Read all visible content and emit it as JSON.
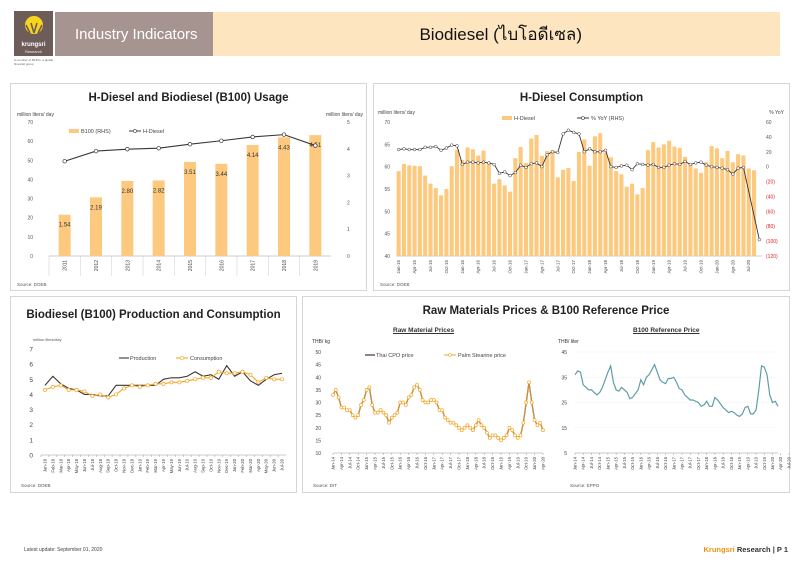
{
  "header": {
    "logo_text": "krungsri",
    "logo_sub": "Research",
    "member_text": "A member of MUFG, a global financial group",
    "section": "Industry Indicators",
    "title": "Biodiesel (ไบโอดีเซล)"
  },
  "colors": {
    "bar": "#fdc97e",
    "orange": "#f5a623",
    "dark": "#3d3535",
    "teal": "#5f9ea8",
    "red": "#e02020",
    "brand": "#f0930c"
  },
  "footer": {
    "updated": "Latest update: September 01, 2020",
    "brand": "Krungsri",
    "brand_rest": " Research | P 1"
  },
  "chart_data": [
    {
      "id": "usage",
      "type": "bar",
      "title": "H-Diesel and Biodiesel (B100) Usage",
      "ylabel_left": "million liters/ day",
      "ylabel_right": "million liters/ day",
      "categories": [
        "2011",
        "2012",
        "2013",
        "2014",
        "2015",
        "2016",
        "2017",
        "2018",
        "2019"
      ],
      "series": [
        {
          "name": "B100 (RHS)",
          "type": "bar",
          "axis": "right",
          "values": [
            1.54,
            2.19,
            2.8,
            2.82,
            3.51,
            3.44,
            4.14,
            4.43,
            4.51
          ],
          "labels": [
            "1.54",
            "2.19",
            "2.80",
            "2.82",
            "3.51",
            "3.44",
            "4.14",
            "4.43",
            "4.51"
          ]
        },
        {
          "name": "H-Diesel",
          "type": "line",
          "axis": "left",
          "values": [
            49.5,
            54.8,
            55.8,
            56.3,
            58.4,
            60.2,
            62.2,
            63.4,
            57.7
          ]
        }
      ],
      "ylim_left": [
        0,
        70
      ],
      "yticks_left": [
        "0",
        "10",
        "20",
        "30",
        "40",
        "50",
        "60",
        "70"
      ],
      "ylim_right": [
        0,
        5
      ],
      "yticks_right": [
        "0",
        "1",
        "2",
        "3",
        "4",
        "5"
      ],
      "legend": "top",
      "source": "Source: DOEB"
    },
    {
      "id": "consumption",
      "type": "bar",
      "title": "H-Diesel Consumption",
      "ylabel_left": "million liters/ day",
      "ylabel_right": "% YoY",
      "x_ticks": [
        "Jan-15",
        "Apr-15",
        "Jul-15",
        "Oct-15",
        "Jan-16",
        "Apr-16",
        "Jul-16",
        "Oct-16",
        "Jan-17",
        "Apr-17",
        "Jul-17",
        "Oct-17",
        "Jan-18",
        "Apr-18",
        "Jul-18",
        "Oct-18",
        "Jan-19",
        "Apr-19",
        "Jul-19",
        "Oct-19",
        "Jan-20",
        "Apr-20",
        "Jul-20"
      ],
      "series": [
        {
          "name": "H-Diesel",
          "type": "bar",
          "axis": "left",
          "values": [
            59.0,
            60.6,
            60.3,
            60.2,
            60.1,
            58.0,
            56.2,
            55.2,
            53.6,
            55.0,
            60.1,
            63.8,
            61.5,
            64.3,
            63.9,
            62.5,
            63.6,
            61.0,
            56.2,
            57.2,
            55.8,
            54.4,
            61.9,
            64.4,
            60.8,
            66.3,
            67.1,
            62.4,
            63.5,
            63.6,
            57.6,
            59.3,
            59.7,
            56.8,
            63.3,
            66.1,
            60.2,
            66.8,
            67.5,
            63.2,
            62.1,
            59.0,
            58.3,
            55.5,
            56.2,
            53.8,
            55.2,
            63.7,
            65.5,
            64.3,
            65.0,
            65.8,
            64.5,
            64.2,
            62.2,
            60.7,
            59.6,
            58.6,
            61.0,
            64.6,
            64.1,
            61.9,
            63.5,
            61.0,
            62.8,
            62.5,
            59.6,
            59.2,
            null
          ]
        },
        {
          "name": "% YoY (RHS)",
          "type": "line",
          "axis": "right",
          "values": [
            23,
            24,
            23,
            23,
            23,
            26,
            26,
            27,
            22,
            25,
            29,
            28,
            3,
            6,
            6,
            5,
            6,
            5,
            3,
            -9,
            -7,
            -12,
            -8,
            2,
            -1,
            4,
            5,
            0,
            16,
            20,
            19,
            44,
            49,
            46,
            44,
            20,
            24,
            20,
            20,
            22,
            0,
            -1,
            1,
            2,
            -4,
            4,
            3,
            2,
            3,
            -1,
            -1,
            2,
            4,
            3,
            7,
            3,
            5,
            6,
            2,
            0,
            -1,
            -2,
            -4,
            -10,
            -2,
            -1,
            -98
          ]
        }
      ],
      "ylim_left": [
        40,
        70
      ],
      "yticks_left": [
        "40",
        "45",
        "50",
        "55",
        "60",
        "65",
        "70"
      ],
      "ylim_right": [
        -120,
        60
      ],
      "yticks_right": [
        "(120)",
        "(100)",
        "(80)",
        "(60)",
        "(40)",
        "(20)",
        "0",
        "20",
        "40",
        "60"
      ],
      "legend": "top",
      "source": "Source: DOEB"
    },
    {
      "id": "prodcons",
      "type": "line",
      "title": "Biodiesel (B100) Production and Consumption",
      "ylabel": "million liters/day",
      "x": [
        "Jan-18",
        "Feb-18",
        "Mar-18",
        "Apr-18",
        "May-18",
        "Jun-18",
        "Jul-18",
        "Aug-18",
        "Sep-18",
        "Oct-18",
        "Nov-18",
        "Dec-18",
        "Jan-19",
        "Feb-19",
        "Mar-19",
        "Apr-19",
        "May-19",
        "Jun-19",
        "Jul-19",
        "Aug-19",
        "Sep-19",
        "Oct-19",
        "Nov-19",
        "Dec-19",
        "Jan-20",
        "Feb-20",
        "Mar-20",
        "Apr-20",
        "May-20",
        "Jun-20",
        "Jul-20"
      ],
      "series": [
        {
          "name": "Production",
          "values": [
            4.6,
            5.2,
            4.7,
            4.4,
            4.3,
            4.0,
            4.0,
            3.9,
            3.9,
            4.6,
            4.6,
            4.6,
            4.6,
            4.6,
            4.6,
            5.0,
            5.1,
            5.1,
            5.2,
            5.5,
            5.2,
            5.3,
            5.0,
            5.9,
            5.2,
            5.5,
            4.9,
            4.6,
            5.0,
            5.3,
            5.4
          ]
        },
        {
          "name": "Consumption",
          "values": [
            4.3,
            4.5,
            4.6,
            4.3,
            4.3,
            4.2,
            3.9,
            4.0,
            3.8,
            4.0,
            4.4,
            4.6,
            4.5,
            4.6,
            4.7,
            4.7,
            4.8,
            4.8,
            4.9,
            5.0,
            5.1,
            5.1,
            5.5,
            5.4,
            5.4,
            5.5,
            5.3,
            4.8,
            5.1,
            5.0,
            5.0
          ]
        }
      ],
      "ylim": [
        0,
        7
      ],
      "yticks": [
        "0",
        "1",
        "2",
        "3",
        "4",
        "5",
        "6",
        "7"
      ],
      "legend": "top",
      "source": "Source: DOEB"
    },
    {
      "id": "raw",
      "type": "line",
      "panel_title": "Raw Materials Prices & B100 Reference Price",
      "title": "Raw Material Prices",
      "ylabel": "THB/ kg",
      "x_ticks": [
        "Jan-14",
        "Apr-14",
        "Jul-14",
        "Oct-14",
        "Jan-15",
        "Apr-15",
        "Jul-15",
        "Oct-15",
        "Jan-16",
        "Apr-16",
        "Jul-16",
        "Oct-16",
        "Jan-17",
        "Apr-17",
        "Jul-17",
        "Oct-17",
        "Jan-18",
        "Apr-18",
        "Jul-18",
        "Oct-18",
        "Jan-19",
        "Apr-19",
        "Jul-19",
        "Oct-19",
        "Jan-20",
        "Apr-20",
        "Jul-20"
      ],
      "series": [
        {
          "name": "Thai CPO price",
          "values": [
            33,
            35,
            32,
            28,
            28,
            27,
            27,
            25,
            24,
            25,
            29,
            31,
            35,
            36,
            29,
            26,
            26,
            27,
            26,
            25,
            22,
            24,
            25,
            26,
            30,
            30,
            29,
            32,
            33,
            36,
            37,
            35,
            31,
            30,
            30,
            31,
            31,
            30,
            27,
            27,
            24,
            23,
            22,
            22,
            21,
            20,
            19,
            20,
            21,
            20,
            19,
            21,
            23,
            21,
            20,
            18,
            16,
            17,
            17,
            16,
            15,
            16,
            17,
            20,
            19,
            17,
            16,
            17,
            22,
            30,
            38,
            30,
            23,
            21,
            22,
            19
          ]
        },
        {
          "name": "Palm Stearine price",
          "values": [
            33,
            35,
            32,
            28,
            28,
            27,
            27,
            25,
            24,
            25,
            29,
            31,
            35,
            36,
            29,
            26,
            26,
            27,
            26,
            25,
            22,
            24,
            25,
            26,
            30,
            30,
            29,
            32,
            33,
            36,
            37,
            35,
            31,
            30,
            30,
            31,
            31,
            30,
            27,
            27,
            24,
            23,
            22,
            22,
            21,
            20,
            19,
            20,
            21,
            20,
            19,
            21,
            23,
            21,
            20,
            18,
            16,
            17,
            17,
            16,
            15,
            16,
            17,
            20,
            19,
            17,
            16,
            17,
            22,
            30,
            38,
            30,
            23,
            21,
            22,
            19
          ]
        }
      ],
      "ylim": [
        10,
        50
      ],
      "yticks": [
        "10",
        "15",
        "20",
        "25",
        "30",
        "35",
        "40",
        "45",
        "50"
      ],
      "legend": "top",
      "source": "Source: DIT"
    },
    {
      "id": "b100ref",
      "type": "line",
      "title": "B100 Reference Price",
      "ylabel": "THB/ liter",
      "x_ticks": [
        "Jan-14",
        "Apr-14",
        "Jul-14",
        "Oct-14",
        "Jan-15",
        "Apr-15",
        "Jul-15",
        "Oct-15",
        "Jan-16",
        "Apr-16",
        "Jul-16",
        "Oct-16",
        "Jan-17",
        "Apr-17",
        "Jul-17",
        "Oct-17",
        "Jan-18",
        "Apr-18",
        "Jul-18",
        "Oct-18",
        "Jan-19",
        "Apr-19",
        "Jul-19",
        "Oct-19",
        "Jan-20",
        "Apr-20",
        "Jul-20"
      ],
      "series": [
        {
          "name": "B100 Reference Price",
          "values": [
            36,
            37.5,
            37,
            32,
            31,
            30,
            30,
            29,
            28,
            29,
            31,
            34,
            37,
            39.5,
            33,
            30,
            29.5,
            31,
            30,
            29,
            26.5,
            27,
            28.5,
            30,
            34,
            32,
            35,
            36,
            38,
            40,
            37,
            34,
            33,
            32.5,
            34.5,
            34.5,
            35,
            33,
            30.5,
            30,
            28,
            27,
            26,
            26,
            25.5,
            25,
            23.5,
            24,
            25.5,
            23.5,
            23.5,
            27,
            26,
            24.5,
            23,
            22,
            21,
            21.5,
            21,
            20,
            19.5,
            20.5,
            23,
            23.5,
            20.5,
            20.5,
            22,
            30,
            39.5,
            39,
            36,
            28,
            25,
            25.5,
            23.5
          ]
        }
      ],
      "ylim": [
        5,
        45
      ],
      "yticks": [
        "5",
        "15",
        "25",
        "35",
        "45"
      ],
      "source": "Source: EPPO"
    }
  ]
}
